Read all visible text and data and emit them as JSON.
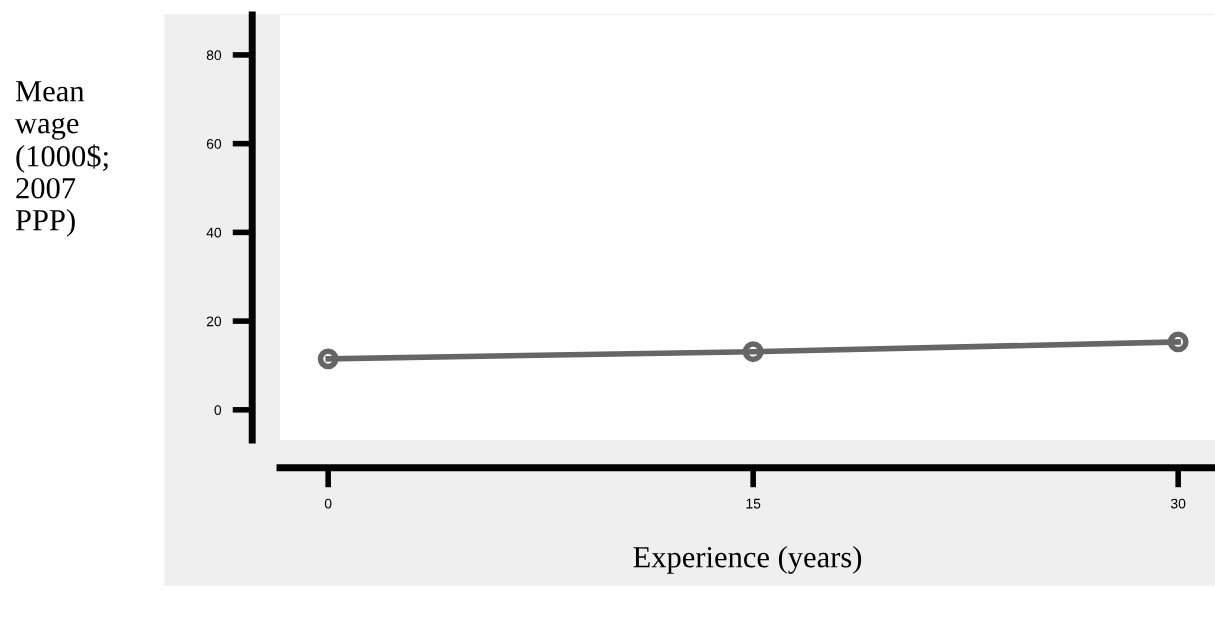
{
  "chart_data": {
    "type": "line",
    "xlabel": "Experience (years)",
    "ylabel": "Mean\nwage\n(1000$;\n2007\nPPP)",
    "x": [
      0,
      15,
      30
    ],
    "series": [
      {
        "color": "#666666",
        "values": [
          11.5,
          13.1,
          15.3
        ]
      }
    ],
    "xlim": [
      -1.7,
      31.3
    ],
    "xticks": [
      0,
      15,
      30
    ],
    "ylim": [
      -6.8,
      89
    ],
    "yticks": [
      0,
      20,
      40,
      60,
      80
    ],
    "marker": "circle",
    "line_style": "solid",
    "grid": false,
    "legend": false
  }
}
